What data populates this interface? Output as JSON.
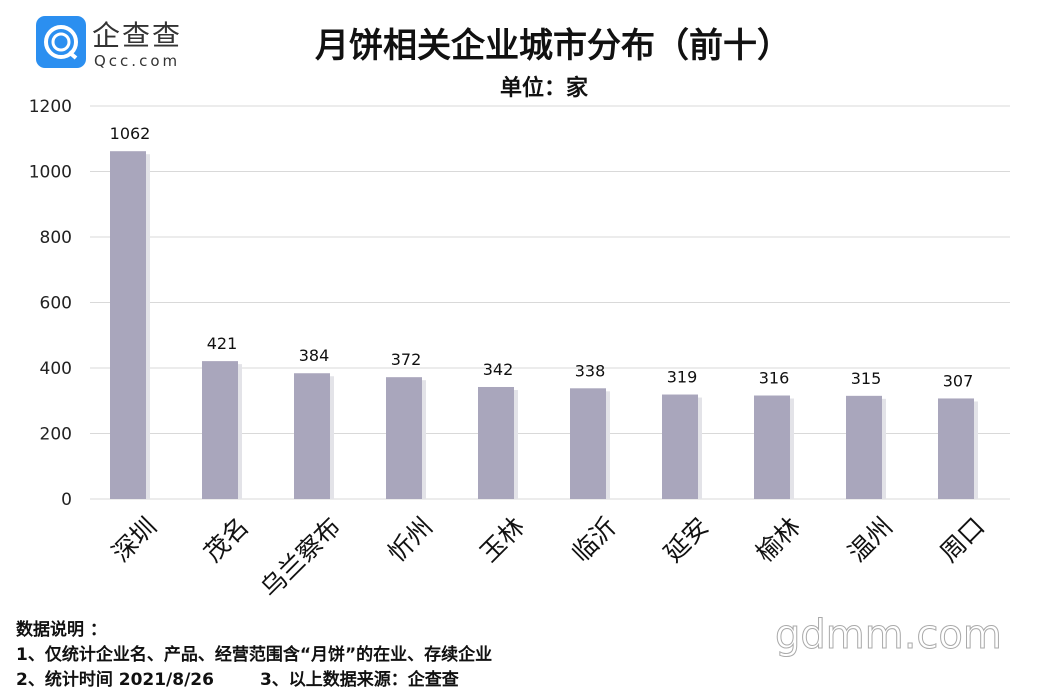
{
  "logo": {
    "cn": "企查查",
    "en": "Qcc.com"
  },
  "watermark": "gdmm.com",
  "notes": {
    "heading": "数据说明 ：",
    "line1": "1、仅统计企业名、产品、经营范围含“月饼”的在业、存续企业",
    "line2a": "2、统计时间  2021/8/26",
    "line2b": "3、以上数据来源：企查查"
  },
  "chart_data": {
    "type": "bar",
    "title": "月饼相关企业城市分布（前十）",
    "subtitle": "单位：家",
    "categories": [
      "深圳",
      "茂名",
      "乌兰察布",
      "忻州",
      "玉林",
      "临沂",
      "延安",
      "榆林",
      "温州",
      "周口"
    ],
    "values": [
      1062,
      421,
      384,
      372,
      342,
      338,
      319,
      316,
      315,
      307
    ],
    "ylim": [
      0,
      1200
    ],
    "yticks": [
      0,
      200,
      400,
      600,
      800,
      1000,
      1200
    ],
    "grid": true,
    "bar_color": "#a9a6bc"
  }
}
